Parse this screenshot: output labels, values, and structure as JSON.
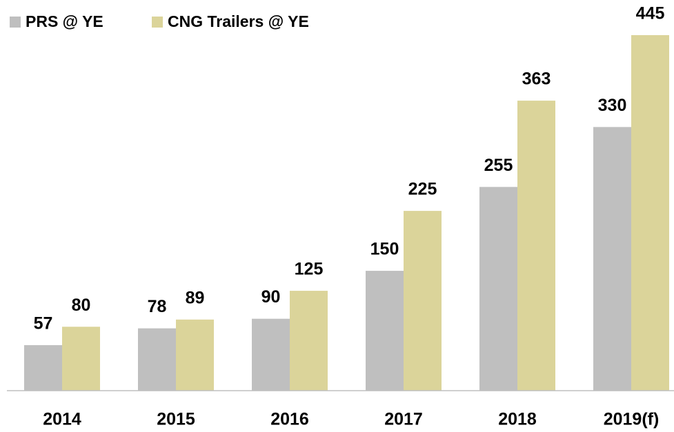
{
  "chart_data": {
    "type": "bar",
    "categories": [
      "2014",
      "2015",
      "2016",
      "2017",
      "2018",
      "2019(f)"
    ],
    "series": [
      {
        "name": "PRS @ YE",
        "color": "#bfbfbf",
        "values": [
          57,
          78,
          90,
          150,
          255,
          330
        ]
      },
      {
        "name": "CNG Trailers @ YE",
        "color": "#dbd49a",
        "values": [
          80,
          89,
          125,
          225,
          363,
          445
        ]
      }
    ]
  }
}
